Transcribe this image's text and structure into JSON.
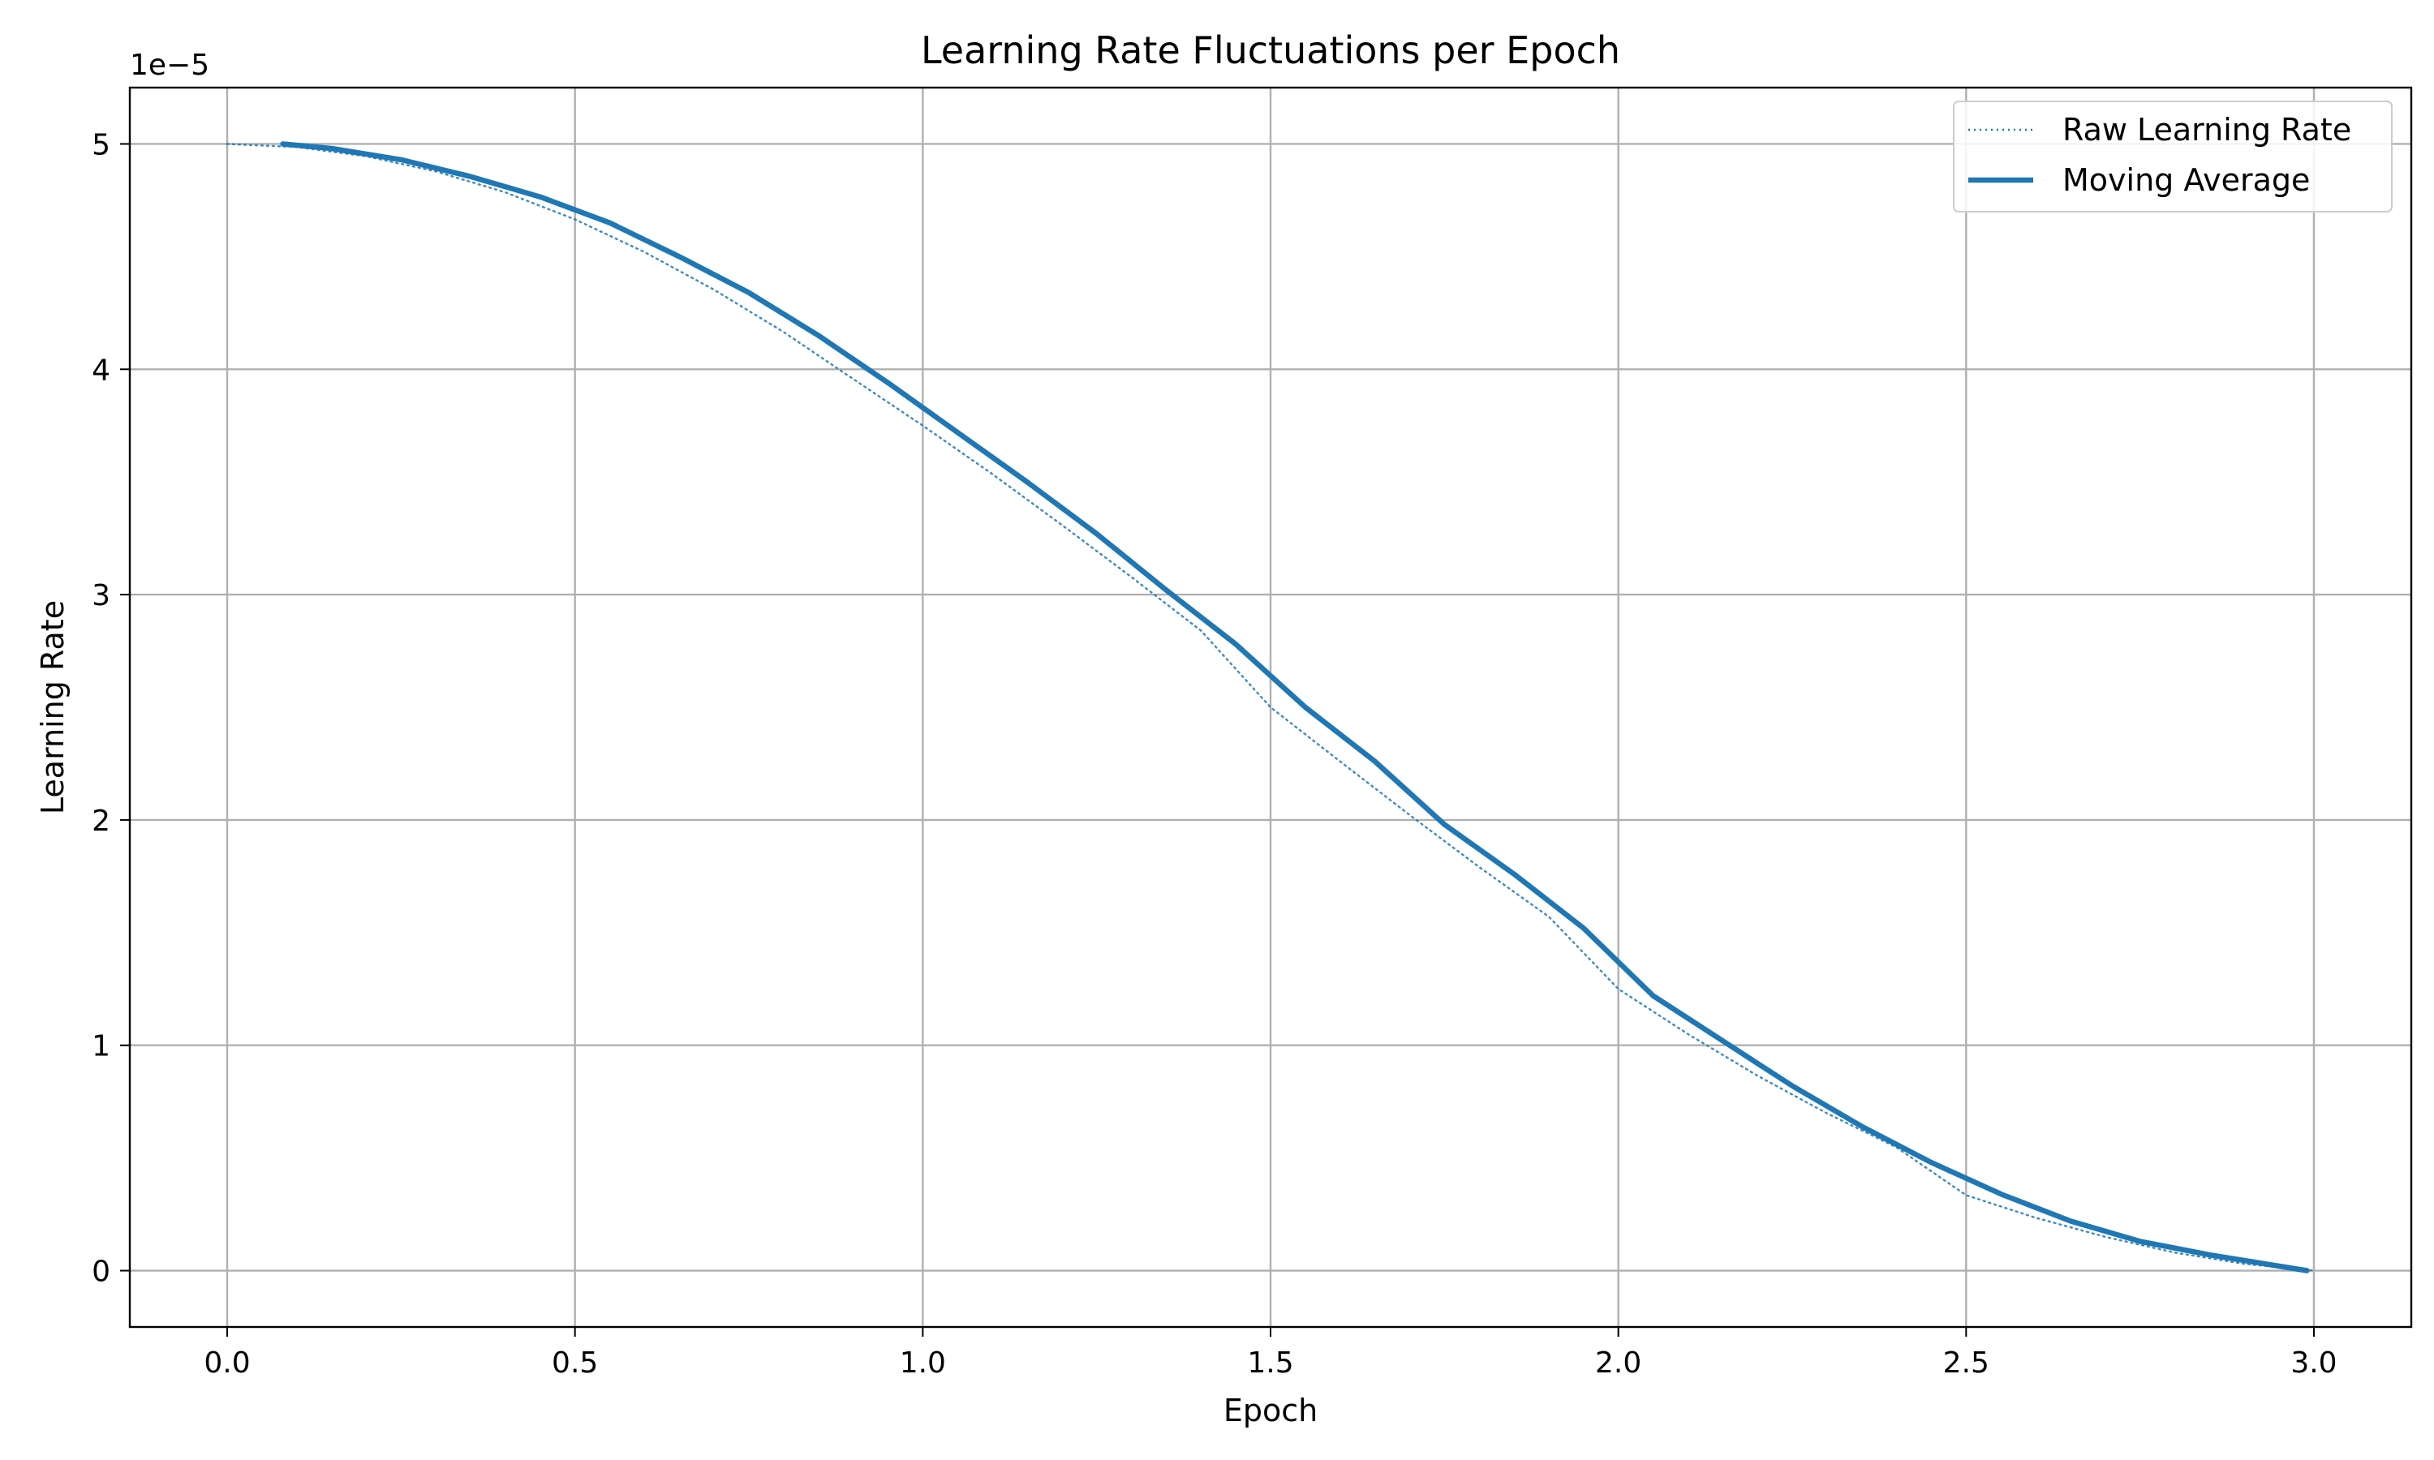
{
  "chart_data": {
    "type": "line",
    "title": "Learning Rate Fluctuations per Epoch",
    "xlabel": "Epoch",
    "ylabel": "Learning Rate",
    "y_offset_label": "1e−5",
    "xlim": [
      -0.14,
      3.14
    ],
    "ylim": [
      -0.25,
      5.25
    ],
    "x_ticks": [
      0.0,
      0.5,
      1.0,
      1.5,
      2.0,
      2.5,
      3.0
    ],
    "x_tick_labels": [
      "0.0",
      "0.5",
      "1.0",
      "1.5",
      "2.0",
      "2.5",
      "3.0"
    ],
    "y_ticks": [
      0,
      1,
      2,
      3,
      4,
      5
    ],
    "y_tick_labels": [
      "0",
      "1",
      "2",
      "3",
      "4",
      "5"
    ],
    "grid": true,
    "legend_position": "top-right",
    "colors": {
      "series": "#1f77b4",
      "grid": "#b0b0b0"
    },
    "series": [
      {
        "name": "Raw Learning Rate",
        "style": "dotted",
        "x": [
          0.0,
          0.1,
          0.2,
          0.3,
          0.4,
          0.5,
          0.6,
          0.7,
          0.8,
          0.9,
          1.0,
          1.1,
          1.2,
          1.3,
          1.4,
          1.5,
          1.6,
          1.7,
          1.8,
          1.9,
          2.0,
          2.1,
          2.2,
          2.3,
          2.4,
          2.5,
          2.6,
          2.7,
          2.8,
          2.9,
          3.0
        ],
        "y": [
          5.0,
          4.986,
          4.945,
          4.878,
          4.785,
          4.665,
          4.52,
          4.353,
          4.165,
          3.957,
          3.75,
          3.535,
          3.309,
          3.078,
          2.84,
          2.5,
          2.26,
          2.022,
          1.791,
          1.571,
          1.25,
          1.05,
          0.865,
          0.698,
          0.547,
          0.335,
          0.235,
          0.15,
          0.08,
          0.03,
          0.0
        ]
      },
      {
        "name": "Moving Average",
        "style": "solid",
        "x": [
          0.08,
          0.15,
          0.25,
          0.35,
          0.45,
          0.55,
          0.65,
          0.75,
          0.85,
          0.95,
          1.05,
          1.15,
          1.25,
          1.35,
          1.45,
          1.55,
          1.65,
          1.75,
          1.85,
          1.95,
          2.05,
          2.15,
          2.25,
          2.35,
          2.45,
          2.55,
          2.65,
          2.75,
          2.85,
          2.95,
          2.99
        ],
        "y": [
          5.0,
          4.98,
          4.93,
          4.855,
          4.765,
          4.65,
          4.5,
          4.34,
          4.15,
          3.94,
          3.72,
          3.5,
          3.27,
          3.02,
          2.78,
          2.5,
          2.26,
          1.98,
          1.76,
          1.52,
          1.22,
          1.02,
          0.82,
          0.64,
          0.48,
          0.34,
          0.22,
          0.13,
          0.07,
          0.02,
          0.0
        ]
      }
    ]
  }
}
